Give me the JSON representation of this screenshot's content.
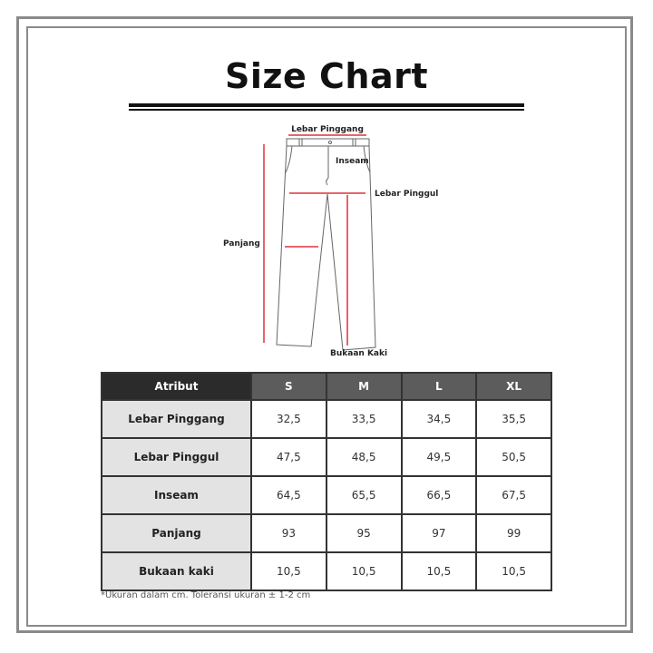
{
  "title": "Size Chart",
  "diagram": {
    "labels": {
      "waist": "Lebar Pinggang",
      "inseam": "Inseam",
      "hip": "Lebar Pinggul",
      "length": "Panjang",
      "leg_opening": "Bukaan Kaki"
    },
    "measure_color": "#e0303f"
  },
  "table": {
    "headers": [
      "Atribut",
      "S",
      "M",
      "L",
      "XL"
    ],
    "rows": [
      {
        "attr": "Lebar Pinggang",
        "values": [
          "32,5",
          "33,5",
          "34,5",
          "35,5"
        ]
      },
      {
        "attr": "Lebar Pinggul",
        "values": [
          "47,5",
          "48,5",
          "49,5",
          "50,5"
        ]
      },
      {
        "attr": "Inseam",
        "values": [
          "64,5",
          "65,5",
          "66,5",
          "67,5"
        ]
      },
      {
        "attr": "Panjang",
        "values": [
          "93",
          "95",
          "97",
          "99"
        ]
      },
      {
        "attr": "Bukaan kaki",
        "values": [
          "10,5",
          "10,5",
          "10,5",
          "10,5"
        ]
      }
    ]
  },
  "footnote": "*Ukuran dalam cm. Toleransi ukuran ± 1-2 cm"
}
